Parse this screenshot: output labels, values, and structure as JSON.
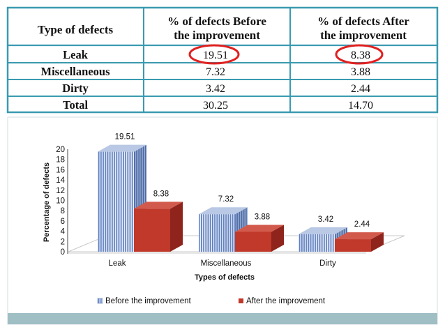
{
  "table": {
    "headers": [
      "Type of defects",
      "% of defects Before the improvement",
      "% of defects After the improvement"
    ],
    "header_lines": [
      [
        "Type of defects"
      ],
      [
        "% of defects Before",
        "the improvement"
      ],
      [
        "% of defects After",
        "the improvement"
      ]
    ],
    "rows": [
      {
        "type": "Leak",
        "before": "19.51",
        "after": "8.38",
        "circled": true
      },
      {
        "type": "Miscellaneous",
        "before": "7.32",
        "after": "3.88",
        "circled": false
      },
      {
        "type": "Dirty",
        "before": "3.42",
        "after": "2.44",
        "circled": false
      },
      {
        "type": "Total",
        "before": "30.25",
        "after": "14.70",
        "circled": false
      }
    ]
  },
  "chart_data": {
    "type": "bar",
    "categories": [
      "Leak",
      "Miscellaneous",
      "Dirty"
    ],
    "series": [
      {
        "name": "Before the improvement",
        "values": [
          19.51,
          7.32,
          3.42
        ],
        "labels": [
          "19.51",
          "7.32",
          "3.42"
        ]
      },
      {
        "name": "After the improvement",
        "values": [
          8.38,
          3.88,
          2.44
        ],
        "labels": [
          "8.38",
          "3.88",
          "2.44"
        ]
      }
    ],
    "xlabel": "Types of defects",
    "ylabel": "Percentage of defects",
    "ylim": [
      0,
      20
    ],
    "yticks": [
      0,
      2,
      4,
      6,
      8,
      10,
      12,
      14,
      16,
      18,
      20
    ],
    "legend_placement": "bottom",
    "style": "3d-clustered"
  },
  "colors": {
    "border": "#3a8fa0",
    "table_border": "#3a9ab0",
    "circle": "#e02020",
    "before_bar": "#6f8fc4",
    "after_bar": "#c0392b",
    "bottom_strip": "#9fbfc4"
  }
}
